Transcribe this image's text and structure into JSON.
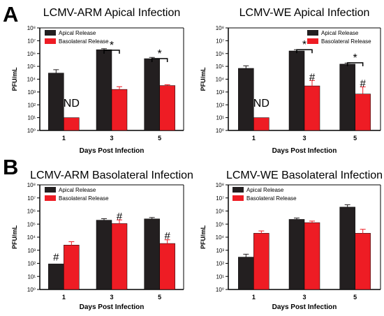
{
  "panel_letters": [
    "A",
    "B"
  ],
  "colors": {
    "apical": "#231f20",
    "basolateral": "#ee1c24",
    "axis": "#000000"
  },
  "chart_data": [
    {
      "type": "bar",
      "title": "LCMV-ARM Apical Infection",
      "xlabel": "Days Post Infection",
      "ylabel": "PFU/mL",
      "yscale": "log",
      "ylim": [
        1,
        100000000
      ],
      "yticks": [
        1,
        10,
        100,
        1000,
        10000,
        100000,
        1000000,
        10000000,
        100000000
      ],
      "ytick_labels": [
        "10⁰",
        "10¹",
        "10²",
        "10³",
        "10⁴",
        "10⁵",
        "10⁶",
        "10⁷",
        "10⁸"
      ],
      "categories": [
        "1",
        "3",
        "5"
      ],
      "legend": "top-left",
      "series": [
        {
          "name": "Apical Release",
          "color": "#231f20",
          "values": [
            30000,
            2000000,
            400000
          ],
          "errors": [
            25000,
            400000,
            100000
          ]
        },
        {
          "name": "Basolateral Release",
          "color": "#ee1c24",
          "values": [
            10,
            1600,
            3200
          ],
          "errors": [
            0,
            1000,
            500
          ]
        }
      ],
      "annotations": [
        {
          "text": "ND",
          "category": 0,
          "anchor": "bar",
          "series": 1,
          "value": 70
        },
        {
          "text": "*",
          "category": 1,
          "anchor": "bracket",
          "value": 1800000
        },
        {
          "text": "*",
          "category": 2,
          "anchor": "bracket",
          "value": 400000
        }
      ]
    },
    {
      "type": "bar",
      "title": "LCMV-WE Apical Infection",
      "xlabel": "Days Post Infection",
      "ylabel": "PFU/mL",
      "yscale": "log",
      "ylim": [
        1,
        100000000
      ],
      "yticks": [
        1,
        10,
        100,
        1000,
        10000,
        100000,
        1000000,
        10000000,
        100000000
      ],
      "ytick_labels": [
        "10⁰",
        "10¹",
        "10²",
        "10³",
        "10⁴",
        "10⁵",
        "10⁶",
        "10⁷",
        "10⁸"
      ],
      "categories": [
        "1",
        "3",
        "5"
      ],
      "legend": "top-right",
      "series": [
        {
          "name": "Apical Release",
          "color": "#231f20",
          "values": [
            70000,
            1600000,
            150000
          ],
          "errors": [
            40000,
            400000,
            30000
          ]
        },
        {
          "name": "Basolateral Release",
          "color": "#ee1c24",
          "values": [
            10,
            3000,
            700
          ],
          "errors": [
            0,
            5000,
            1800
          ]
        }
      ],
      "annotations": [
        {
          "text": "ND",
          "category": 0,
          "anchor": "bar",
          "series": 1,
          "value": 70
        },
        {
          "text": "*",
          "category": 1,
          "anchor": "bracket",
          "value": 2000000
        },
        {
          "text": "#",
          "category": 1,
          "anchor": "bar",
          "series": 1,
          "value": 8000
        },
        {
          "text": "*",
          "category": 2,
          "anchor": "bracket",
          "value": 190000
        },
        {
          "text": "#",
          "category": 2,
          "anchor": "bar",
          "series": 1,
          "value": 2500
        }
      ]
    },
    {
      "type": "bar",
      "title": "LCMV-ARM Basolateral Infection",
      "xlabel": "Days Post Infection",
      "ylabel": "PFU/mL",
      "yscale": "log",
      "ylim": [
        1,
        100000000
      ],
      "yticks": [
        1,
        10,
        100,
        1000,
        10000,
        100000,
        1000000,
        10000000,
        100000000
      ],
      "ytick_labels": [
        "10⁰",
        "10¹",
        "10²",
        "10³",
        "10⁴",
        "10⁵",
        "10⁶",
        "10⁷",
        "10⁸"
      ],
      "categories": [
        "1",
        "3",
        "5"
      ],
      "legend": "top-left",
      "series": [
        {
          "name": "Apical Release",
          "color": "#231f20",
          "values": [
            90,
            200000,
            250000
          ],
          "errors": [
            0,
            60000,
            70000
          ]
        },
        {
          "name": "Basolateral Release",
          "color": "#ee1c24",
          "values": [
            2500,
            110000,
            3300
          ],
          "errors": [
            2000,
            100000,
            3000
          ]
        }
      ],
      "annotations": [
        {
          "text": "#",
          "category": 0,
          "anchor": "bar",
          "series": 0,
          "value": 160
        },
        {
          "text": "#",
          "category": 1,
          "anchor": "bar",
          "series": 1,
          "value": 220000
        },
        {
          "text": "#",
          "category": 2,
          "anchor": "bar",
          "series": 1,
          "value": 7000
        }
      ]
    },
    {
      "type": "bar",
      "title": "LCMV-WE Basolateral Infection",
      "xlabel": "Days Post Infection",
      "ylabel": "PFU/mL",
      "yscale": "log",
      "ylim": [
        1,
        100000000
      ],
      "yticks": [
        1,
        10,
        100,
        1000,
        10000,
        100000,
        1000000,
        10000000,
        100000000
      ],
      "ytick_labels": [
        "10⁰",
        "10¹",
        "10²",
        "10³",
        "10⁴",
        "10⁵",
        "10⁶",
        "10⁷",
        "10⁸"
      ],
      "categories": [
        "1",
        "3",
        "5"
      ],
      "legend": "top-left",
      "series": [
        {
          "name": "Apical Release",
          "color": "#231f20",
          "values": [
            300,
            230000,
            2000000
          ],
          "errors": [
            200,
            60000,
            1000000
          ]
        },
        {
          "name": "Basolateral Release",
          "color": "#ee1c24",
          "values": [
            20000,
            130000,
            20000
          ],
          "errors": [
            10000,
            40000,
            20000
          ]
        }
      ],
      "annotations": []
    }
  ]
}
